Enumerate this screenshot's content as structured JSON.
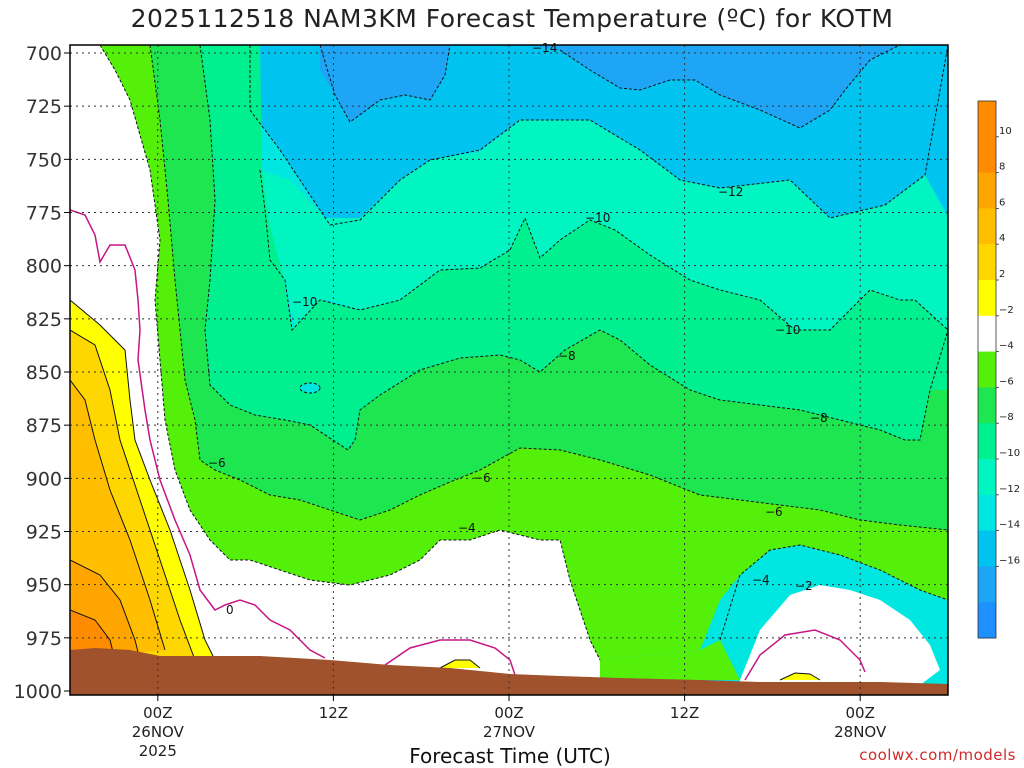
{
  "title": "2025112518 NAM3KM Forecast Temperature (ºC) for KOTM",
  "x_axis_label": "Forecast Time (UTC)",
  "credit": "coolwx.com/models",
  "chart_data": {
    "type": "time-height contour",
    "title": "2025112518 NAM3KM Forecast Temperature (ºC) for KOTM",
    "xlabel": "Forecast Time (UTC)",
    "ylabel": "",
    "y_ticks": [
      700,
      725,
      750,
      775,
      800,
      825,
      850,
      875,
      900,
      925,
      950,
      975,
      1000
    ],
    "ylim": [
      1000,
      700
    ],
    "x_ticks": [
      {
        "label": [
          "00Z",
          "26NOV",
          "2025"
        ],
        "hours": 6
      },
      {
        "label": [
          "12Z"
        ],
        "hours": 18
      },
      {
        "label": [
          "00Z",
          "27NOV"
        ],
        "hours": 30
      },
      {
        "label": [
          "12Z"
        ],
        "hours": 42
      },
      {
        "label": [
          "00Z",
          "28NOV"
        ],
        "hours": 54
      }
    ],
    "xlim": [
      0,
      60
    ],
    "grid": true,
    "color_scale": [
      {
        "value": -18,
        "color": "#1e90ff"
      },
      {
        "value": -16,
        "color": "#1ea5f5"
      },
      {
        "value": -14,
        "color": "#00c3f0"
      },
      {
        "value": -12,
        "color": "#00e6e0"
      },
      {
        "value": -10,
        "color": "#00f5c0"
      },
      {
        "value": -8,
        "color": "#00f090"
      },
      {
        "value": -6,
        "color": "#1ee650"
      },
      {
        "value": -4,
        "color": "#55f00a"
      },
      {
        "value": -2,
        "color": "#ffffff"
      },
      {
        "value": 2,
        "color": "#ffff00"
      },
      {
        "value": 4,
        "color": "#ffd700"
      },
      {
        "value": 6,
        "color": "#ffbe00"
      },
      {
        "value": 8,
        "color": "#ffa500"
      },
      {
        "value": 10,
        "color": "#ff8c00"
      },
      {
        "value": 12,
        "color": "#ff8c00"
      }
    ],
    "colorbar_tick_labels": [
      "10",
      "8",
      "6",
      "4",
      "2",
      "−2",
      "−4",
      "−6",
      "−8",
      "−10",
      "−12",
      "−14",
      "−16"
    ],
    "contour_labels": [
      "−14",
      "−12",
      "−10",
      "−10",
      "−10",
      "−8",
      "−8",
      "−6",
      "−6",
      "−6",
      "−4",
      "−4",
      "−2",
      "0"
    ],
    "ground_color": "#a0522d",
    "zero_line_color": "#c71585"
  }
}
